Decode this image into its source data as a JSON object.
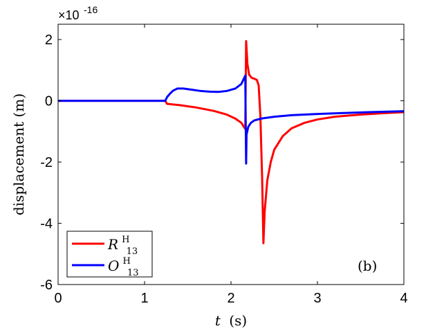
{
  "chart_data": {
    "type": "line",
    "xlabel_var": "t",
    "xlabel_unit": "(s)",
    "ylabel": "displacement  (m)",
    "exponent_base": "×10",
    "exponent_power": "-16",
    "panel_label": "(b)",
    "xlim": [
      0,
      4
    ],
    "ylim": [
      -6,
      2.5
    ],
    "xticks": [
      0,
      1,
      2,
      3,
      4
    ],
    "xtick_labels": [
      "0",
      "1",
      "2",
      "3",
      "4"
    ],
    "yticks": [
      -6,
      -4,
      -2,
      0,
      2
    ],
    "ytick_labels": [
      "-6",
      "-4",
      "-2",
      "0",
      "2"
    ],
    "grid": false,
    "legend_placement": "bottom-left",
    "series": [
      {
        "name_main": "R",
        "name_sup": "H",
        "name_sub": "13",
        "color": "#ff0000",
        "points": [
          [
            0,
            0
          ],
          [
            1.24,
            0
          ],
          [
            1.26,
            -0.1
          ],
          [
            1.4,
            -0.14
          ],
          [
            1.6,
            -0.22
          ],
          [
            1.8,
            -0.33
          ],
          [
            1.95,
            -0.45
          ],
          [
            2.05,
            -0.58
          ],
          [
            2.12,
            -0.72
          ],
          [
            2.165,
            -0.92
          ],
          [
            2.17,
            0.5
          ],
          [
            2.175,
            1.95
          ],
          [
            2.19,
            1.2
          ],
          [
            2.21,
            0.85
          ],
          [
            2.24,
            0.75
          ],
          [
            2.27,
            0.72
          ],
          [
            2.3,
            0.68
          ],
          [
            2.32,
            0.5
          ],
          [
            2.34,
            -0.5
          ],
          [
            2.36,
            -2.5
          ],
          [
            2.375,
            -4.65
          ],
          [
            2.39,
            -3.6
          ],
          [
            2.42,
            -2.6
          ],
          [
            2.46,
            -2.0
          ],
          [
            2.5,
            -1.6
          ],
          [
            2.6,
            -1.15
          ],
          [
            2.7,
            -0.9
          ],
          [
            2.85,
            -0.72
          ],
          [
            3.0,
            -0.61
          ],
          [
            3.2,
            -0.52
          ],
          [
            3.5,
            -0.45
          ],
          [
            3.8,
            -0.4
          ],
          [
            4.0,
            -0.37
          ]
        ]
      },
      {
        "name_main": "O",
        "name_sup": "H",
        "name_sub": "13",
        "color": "#0000ff",
        "points": [
          [
            0,
            0
          ],
          [
            1.24,
            0
          ],
          [
            1.26,
            0.12
          ],
          [
            1.3,
            0.25
          ],
          [
            1.33,
            0.33
          ],
          [
            1.38,
            0.4
          ],
          [
            1.45,
            0.4
          ],
          [
            1.55,
            0.36
          ],
          [
            1.65,
            0.32
          ],
          [
            1.75,
            0.3
          ],
          [
            1.85,
            0.29
          ],
          [
            1.95,
            0.32
          ],
          [
            2.05,
            0.4
          ],
          [
            2.12,
            0.55
          ],
          [
            2.165,
            0.82
          ],
          [
            2.17,
            -0.6
          ],
          [
            2.175,
            -2.05
          ],
          [
            2.18,
            -1.1
          ],
          [
            2.2,
            -0.85
          ],
          [
            2.23,
            -0.72
          ],
          [
            2.27,
            -0.64
          ],
          [
            2.35,
            -0.58
          ],
          [
            2.5,
            -0.52
          ],
          [
            2.7,
            -0.47
          ],
          [
            3.0,
            -0.43
          ],
          [
            3.3,
            -0.4
          ],
          [
            3.6,
            -0.37
          ],
          [
            4.0,
            -0.34
          ]
        ]
      }
    ]
  }
}
